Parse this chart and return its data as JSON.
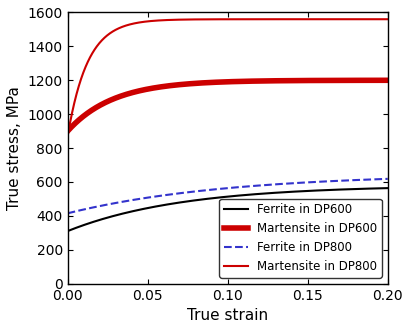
{
  "title": "",
  "xlabel": "True strain",
  "ylabel": "True stress, MPa",
  "xlim": [
    0.0,
    0.2
  ],
  "ylim": [
    0,
    1600
  ],
  "yticks": [
    0,
    200,
    400,
    600,
    800,
    1000,
    1200,
    1400,
    1600
  ],
  "xticks": [
    0.0,
    0.05,
    0.1,
    0.15,
    0.2
  ],
  "background_color": "#ffffff",
  "curves": {
    "ferrite_dp600": {
      "color": "#000000",
      "linewidth": 1.5,
      "linestyle": "solid",
      "label": "Ferrite in DP600",
      "sigma0": 310,
      "sigma_inf": 580,
      "rate": 14
    },
    "martensite_dp600": {
      "color": "#cc0000",
      "linewidth": 4.0,
      "linestyle": "solid",
      "label": "Martensite in DP600",
      "sigma0": 900,
      "sigma_inf": 1200,
      "rate": 35
    },
    "ferrite_dp800": {
      "color": "#3333cc",
      "linewidth": 1.5,
      "linestyle": "dashed",
      "label": "Ferrite in DP800",
      "sigma0": 415,
      "sigma_inf": 650,
      "rate": 10
    },
    "martensite_dp800": {
      "color": "#cc0000",
      "linewidth": 1.5,
      "linestyle": "solid",
      "label": "Martensite in DP800",
      "sigma0": 870,
      "sigma_inf": 1560,
      "rate": 80
    }
  },
  "legend_loc": "lower right",
  "legend_fontsize": 8.5,
  "tick_labelsize": 10,
  "axis_labelsize": 11
}
